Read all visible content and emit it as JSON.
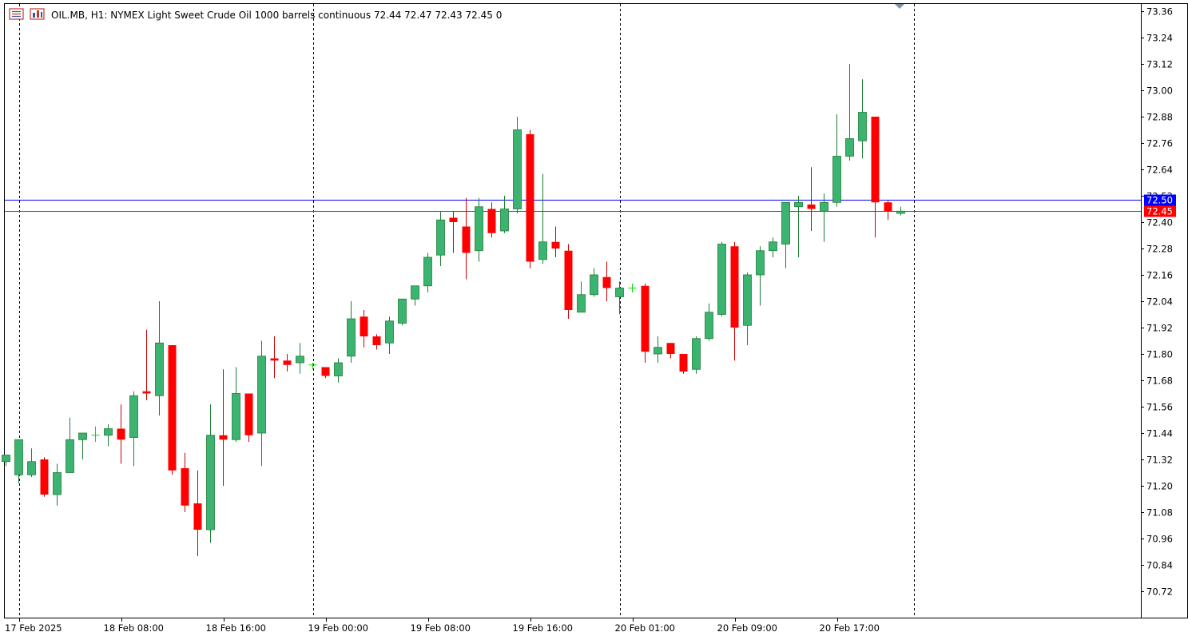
{
  "header": {
    "symbol": "OIL.MB",
    "timeframe": "H1:",
    "description": "NYMEX Light Sweet Crude Oil 1000 barrels continuous",
    "ohlc": "72.44 72.47 72.43 72.45",
    "volume": "0",
    "icons": [
      "trade-menu-icon",
      "chart-settings-icon"
    ]
  },
  "colors": {
    "bull_fill": "#3cb371",
    "bull_stroke": "#1e7e34",
    "bear_fill": "#ff0000",
    "bear_stroke": "#cc0000",
    "doji": "#00dd00",
    "ask_line": "#0000ff",
    "bid_line": "#ff0000",
    "axis_text": "#000000",
    "grid_separator": "#000000"
  },
  "chart_data": {
    "type": "candlestick",
    "title": "",
    "ylim": [
      70.6,
      73.4
    ],
    "y_ticks": [
      "73.36",
      "73.24",
      "73.12",
      "73.00",
      "72.88",
      "72.76",
      "72.64",
      "72.52",
      "72.40",
      "72.28",
      "72.16",
      "72.04",
      "71.92",
      "71.80",
      "71.68",
      "71.56",
      "71.44",
      "71.32",
      "71.20",
      "71.08",
      "70.96",
      "70.84",
      "70.72"
    ],
    "x_labels": [
      {
        "bar": 1,
        "label": "17 Feb 2025"
      },
      {
        "bar": 9,
        "label": "18 Feb 08:00"
      },
      {
        "bar": 17,
        "label": "18 Feb 16:00"
      },
      {
        "bar": 25,
        "label": "19 Feb 00:00"
      },
      {
        "bar": 33,
        "label": "19 Feb 08:00"
      },
      {
        "bar": 41,
        "label": "19 Feb 16:00"
      },
      {
        "bar": 49,
        "label": "20 Feb 01:00"
      },
      {
        "bar": 57,
        "label": "20 Feb 09:00"
      },
      {
        "bar": 65,
        "label": "20 Feb 17:00"
      }
    ],
    "day_separators": [
      1,
      24,
      48,
      71
    ],
    "ask_price": "72.50",
    "bid_price": "72.45",
    "candles": [
      [
        71.31,
        71.34,
        71.29,
        71.34
      ],
      [
        71.25,
        71.41,
        71.21,
        71.41
      ],
      [
        71.25,
        71.37,
        71.24,
        71.31
      ],
      [
        71.32,
        71.33,
        71.15,
        71.16
      ],
      [
        71.16,
        71.3,
        71.11,
        71.26
      ],
      [
        71.26,
        71.51,
        71.26,
        71.41
      ],
      [
        71.41,
        71.44,
        71.32,
        71.44
      ],
      [
        71.43,
        71.47,
        71.4,
        71.43
      ],
      [
        71.43,
        71.48,
        71.38,
        71.46
      ],
      [
        71.46,
        71.57,
        71.3,
        71.41
      ],
      [
        71.42,
        71.63,
        71.29,
        71.61
      ],
      [
        71.63,
        71.91,
        71.59,
        71.62
      ],
      [
        71.61,
        72.04,
        71.52,
        71.85
      ],
      [
        71.84,
        71.84,
        71.25,
        71.27
      ],
      [
        71.28,
        71.35,
        71.08,
        71.11
      ],
      [
        71.12,
        71.27,
        70.88,
        71.0
      ],
      [
        71.0,
        71.57,
        70.94,
        71.43
      ],
      [
        71.43,
        71.73,
        71.2,
        71.41
      ],
      [
        71.41,
        71.74,
        71.4,
        71.62
      ],
      [
        71.62,
        71.62,
        71.4,
        71.43
      ],
      [
        71.44,
        71.86,
        71.29,
        71.79
      ],
      [
        71.78,
        71.88,
        71.69,
        71.77
      ],
      [
        71.77,
        71.8,
        71.72,
        71.75
      ],
      [
        71.76,
        71.85,
        71.71,
        71.79
      ],
      [
        71.75,
        71.76,
        71.73,
        71.75
      ],
      [
        71.74,
        71.74,
        71.69,
        71.7
      ],
      [
        71.7,
        71.78,
        71.67,
        71.76
      ],
      [
        71.79,
        72.04,
        71.76,
        71.96
      ],
      [
        71.97,
        72.0,
        71.83,
        71.88
      ],
      [
        71.88,
        71.89,
        71.82,
        71.84
      ],
      [
        71.85,
        71.97,
        71.8,
        71.95
      ],
      [
        71.94,
        72.05,
        71.93,
        72.05
      ],
      [
        72.05,
        72.11,
        72.02,
        72.11
      ],
      [
        72.11,
        72.26,
        72.08,
        72.24
      ],
      [
        72.25,
        72.45,
        72.2,
        72.41
      ],
      [
        72.42,
        72.45,
        72.26,
        72.4
      ],
      [
        72.38,
        72.51,
        72.14,
        72.26
      ],
      [
        72.27,
        72.51,
        72.22,
        72.47
      ],
      [
        72.46,
        72.49,
        72.33,
        72.35
      ],
      [
        72.36,
        72.52,
        72.35,
        72.46
      ],
      [
        72.46,
        72.88,
        72.44,
        72.82
      ],
      [
        72.8,
        72.82,
        72.19,
        72.22
      ],
      [
        72.23,
        72.62,
        72.21,
        72.31
      ],
      [
        72.31,
        72.38,
        72.24,
        72.28
      ],
      [
        72.27,
        72.3,
        71.96,
        72.0
      ],
      [
        71.99,
        72.13,
        71.99,
        72.07
      ],
      [
        72.07,
        72.19,
        72.06,
        72.16
      ],
      [
        72.15,
        72.22,
        72.04,
        72.1
      ],
      [
        72.06,
        72.13,
        71.98,
        72.1
      ],
      [
        72.1,
        72.12,
        72.08,
        72.1
      ],
      [
        72.11,
        72.12,
        71.76,
        71.81
      ],
      [
        71.8,
        71.88,
        71.76,
        71.83
      ],
      [
        71.85,
        71.85,
        71.78,
        71.8
      ],
      [
        71.8,
        71.8,
        71.71,
        71.72
      ],
      [
        71.73,
        71.88,
        71.71,
        71.87
      ],
      [
        71.87,
        72.03,
        71.86,
        71.99
      ],
      [
        71.98,
        72.31,
        71.97,
        72.3
      ],
      [
        72.29,
        72.31,
        71.77,
        71.92
      ],
      [
        71.93,
        72.17,
        71.84,
        72.16
      ],
      [
        72.16,
        72.29,
        72.02,
        72.27
      ],
      [
        72.27,
        72.33,
        72.24,
        72.31
      ],
      [
        72.3,
        72.49,
        72.19,
        72.49
      ],
      [
        72.47,
        72.52,
        72.24,
        72.49
      ],
      [
        72.48,
        72.65,
        72.36,
        72.46
      ],
      [
        72.45,
        72.53,
        72.31,
        72.49
      ],
      [
        72.49,
        72.89,
        72.47,
        72.7
      ],
      [
        72.7,
        73.12,
        72.68,
        72.78
      ],
      [
        72.77,
        73.05,
        72.69,
        72.9
      ],
      [
        72.88,
        72.88,
        72.33,
        72.49
      ],
      [
        72.49,
        72.5,
        72.41,
        72.45
      ],
      [
        72.44,
        72.47,
        72.43,
        72.45
      ]
    ]
  }
}
